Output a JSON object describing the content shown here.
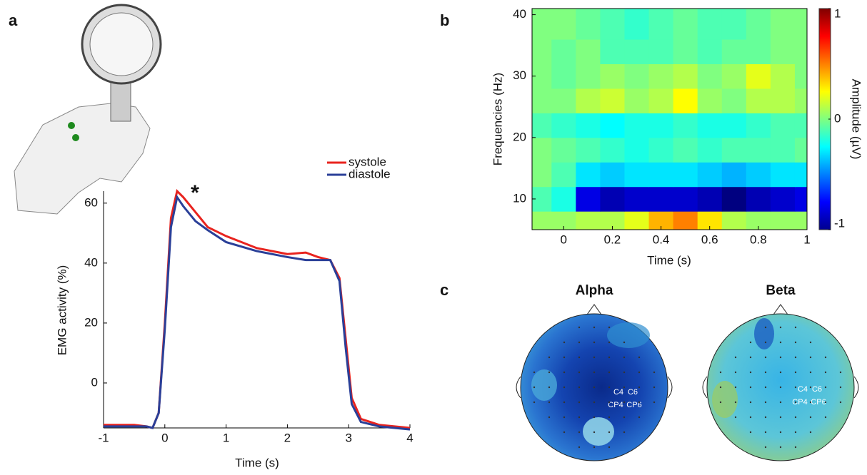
{
  "panel_labels": [
    "a",
    "b",
    "c"
  ],
  "chart_data": [
    {
      "type": "line",
      "xlabel": "Time (s)",
      "ylabel": "EMG activity (%)",
      "annotation": "*",
      "x": [
        -1,
        -0.5,
        -0.3,
        -0.2,
        -0.1,
        0,
        0.1,
        0.2,
        0.3,
        0.5,
        0.7,
        1,
        1.5,
        2,
        2.3,
        2.5,
        2.7,
        2.85,
        2.95,
        3.05,
        3.2,
        3.5,
        4
      ],
      "series": [
        {
          "name": "systole",
          "color": "#e8231e",
          "values": [
            -14,
            -14,
            -14.5,
            -15,
            -10,
            20,
            55,
            64,
            62,
            57,
            52,
            49,
            45,
            43,
            43.5,
            42,
            41,
            35,
            15,
            -5,
            -12,
            -14,
            -15
          ]
        },
        {
          "name": "diastole",
          "color": "#2a3f98",
          "values": [
            -14.5,
            -14.5,
            -14.5,
            -15,
            -10,
            18,
            52,
            62,
            59,
            54,
            51,
            47,
            44,
            42,
            41,
            41,
            41,
            34,
            12,
            -7,
            -13,
            -14.5,
            -15.5
          ]
        }
      ],
      "xlim": [
        -1,
        4
      ],
      "ylim": [
        -15,
        64
      ],
      "xticks": [
        -1,
        0,
        1,
        2,
        3,
        4
      ],
      "yticks": [
        0,
        20,
        40,
        60
      ],
      "legend": "upper right"
    },
    {
      "type": "heatmap",
      "xlabel": "Time (s)",
      "ylabel": "Frequencies (Hz)",
      "colormap": "jet",
      "x": [
        -0.1,
        0,
        0.1,
        0.2,
        0.3,
        0.4,
        0.5,
        0.6,
        0.7,
        0.8,
        0.9,
        1.0
      ],
      "y": [
        6,
        10,
        14,
        18,
        22,
        26,
        30,
        34,
        38
      ],
      "z": [
        [
          0.05,
          0.05,
          0.1,
          0.1,
          0.2,
          0.4,
          0.5,
          0.3,
          0.1,
          0.05,
          0.05,
          0.05
        ],
        [
          -0.1,
          -0.2,
          -0.8,
          -0.9,
          -0.85,
          -0.85,
          -0.85,
          -0.9,
          -1.0,
          -0.9,
          -0.85,
          -0.8
        ],
        [
          0,
          -0.1,
          -0.3,
          -0.35,
          -0.3,
          -0.3,
          -0.3,
          -0.35,
          -0.4,
          -0.35,
          -0.3,
          -0.3
        ],
        [
          0,
          -0.05,
          -0.1,
          -0.15,
          -0.2,
          -0.15,
          -0.1,
          -0.15,
          -0.1,
          -0.1,
          -0.1,
          -0.05
        ],
        [
          -0.1,
          -0.15,
          -0.2,
          -0.25,
          -0.2,
          -0.2,
          -0.15,
          -0.2,
          -0.2,
          -0.15,
          -0.1,
          -0.1
        ],
        [
          0,
          0,
          0.1,
          0.15,
          0.05,
          0.1,
          0.25,
          0.05,
          0,
          0.1,
          0.1,
          0.05
        ],
        [
          0,
          -0.05,
          0,
          0.05,
          0,
          0.05,
          0.1,
          0,
          0.05,
          0.2,
          0.1,
          0
        ],
        [
          0,
          -0.05,
          0,
          -0.1,
          -0.1,
          -0.1,
          -0.05,
          -0.1,
          -0.05,
          -0.05,
          0,
          0
        ],
        [
          0,
          0,
          -0.05,
          -0.1,
          -0.15,
          -0.1,
          -0.05,
          -0.1,
          -0.1,
          -0.05,
          0,
          0
        ]
      ],
      "xlim": [
        -0.13,
        1
      ],
      "ylim": [
        5,
        41
      ],
      "xticks": [
        0,
        0.2,
        0.4,
        0.6,
        0.8,
        1
      ],
      "yticks": [
        10,
        20,
        30,
        40
      ],
      "clim": [
        -1,
        1
      ],
      "cticks": [
        -1,
        0,
        1
      ],
      "clabel": "Amplitude (µV)"
    }
  ],
  "topomaps": [
    {
      "title": "Alpha",
      "channels": [
        "C4",
        "C6",
        "CP4",
        "CP6"
      ]
    },
    {
      "title": "Beta",
      "channels": [
        "C4",
        "C6",
        "CP4",
        "CP6"
      ]
    }
  ]
}
